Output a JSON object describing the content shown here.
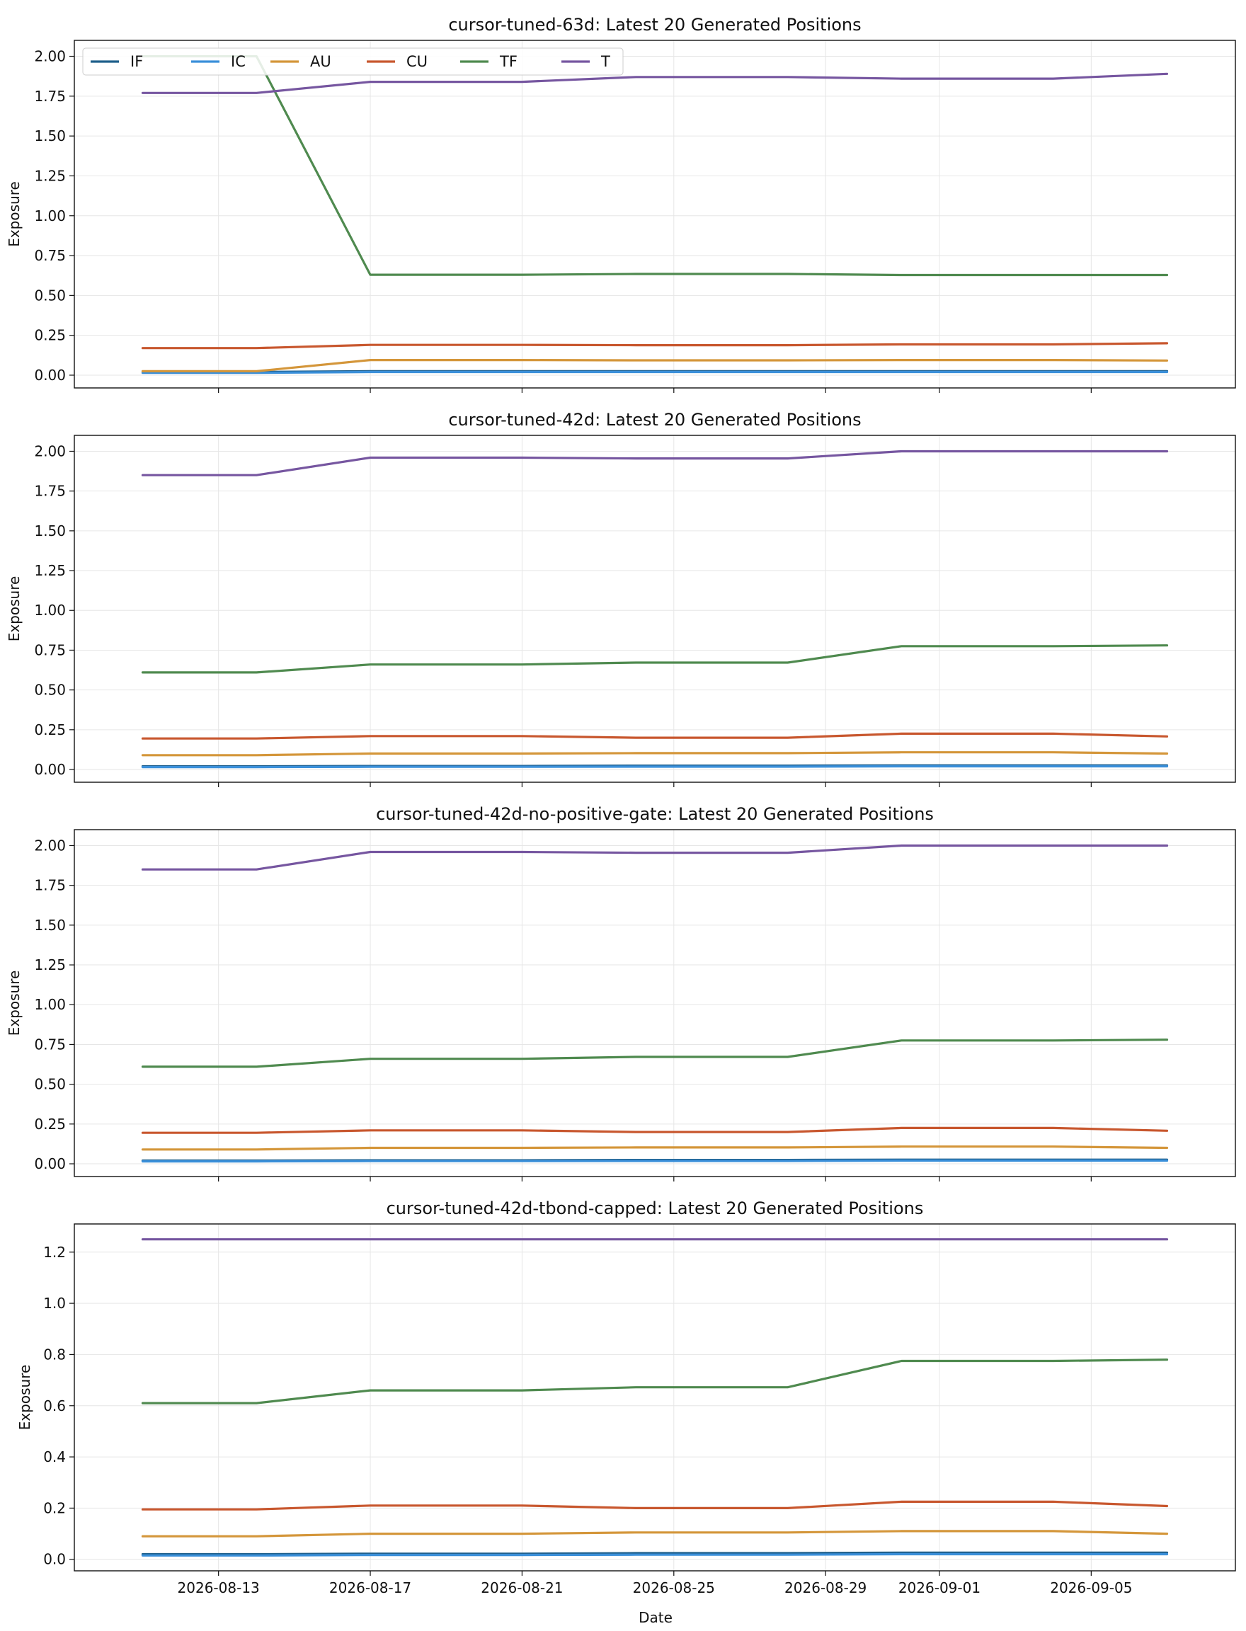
{
  "chart_data": {
    "type": "line",
    "shared_xlabel": "Date",
    "x_ticks": [
      "2026-08-13",
      "2026-08-17",
      "2026-08-21",
      "2026-08-25",
      "2026-08-29",
      "2026-09-01",
      "2026-09-05"
    ],
    "x": [
      "2026-08-11",
      "2026-08-14",
      "2026-08-17",
      "2026-08-21",
      "2026-08-24",
      "2026-08-28",
      "2026-08-31",
      "2026-09-04",
      "2026-09-07"
    ],
    "legend": {
      "placement": "upper-left",
      "columns": 6,
      "in_panel": 0
    },
    "colors": {
      "IF": "#1f5f8b",
      "IC": "#3a8fd9",
      "AU": "#d4963a",
      "CU": "#c8572e",
      "TF": "#4f8a4f",
      "T": "#7656a0"
    },
    "panels": [
      {
        "title": "cursor-tuned-63d: Latest 20 Generated Positions",
        "ylabel": "Exposure",
        "ylim": [
          -0.08,
          2.1
        ],
        "yticks": [
          "0.00",
          "0.25",
          "0.50",
          "0.75",
          "1.00",
          "1.25",
          "1.50",
          "1.75",
          "2.00"
        ],
        "series": [
          {
            "name": "IF",
            "values": [
              0.02,
              0.02,
              0.025,
              0.025,
              0.025,
              0.025,
              0.025,
              0.025,
              0.025
            ]
          },
          {
            "name": "IC",
            "values": [
              0.015,
              0.015,
              0.02,
              0.02,
              0.02,
              0.02,
              0.02,
              0.02,
              0.02
            ]
          },
          {
            "name": "AU",
            "values": [
              0.025,
              0.025,
              0.095,
              0.095,
              0.093,
              0.093,
              0.095,
              0.095,
              0.092
            ]
          },
          {
            "name": "CU",
            "values": [
              0.17,
              0.17,
              0.19,
              0.19,
              0.188,
              0.188,
              0.193,
              0.193,
              0.2
            ]
          },
          {
            "name": "TF",
            "values": [
              2.0,
              2.0,
              0.63,
              0.63,
              0.635,
              0.635,
              0.628,
              0.628,
              0.628
            ]
          },
          {
            "name": "T",
            "values": [
              1.77,
              1.77,
              1.84,
              1.84,
              1.87,
              1.87,
              1.86,
              1.86,
              1.89
            ]
          }
        ]
      },
      {
        "title": "cursor-tuned-42d: Latest 20 Generated Positions",
        "ylabel": "Exposure",
        "ylim": [
          -0.08,
          2.1
        ],
        "yticks": [
          "0.00",
          "0.25",
          "0.50",
          "0.75",
          "1.00",
          "1.25",
          "1.50",
          "1.75",
          "2.00"
        ],
        "series": [
          {
            "name": "IF",
            "values": [
              0.02,
              0.02,
              0.022,
              0.022,
              0.024,
              0.024,
              0.026,
              0.026,
              0.026
            ]
          },
          {
            "name": "IC",
            "values": [
              0.015,
              0.015,
              0.017,
              0.017,
              0.018,
              0.018,
              0.02,
              0.02,
              0.02
            ]
          },
          {
            "name": "AU",
            "values": [
              0.09,
              0.09,
              0.1,
              0.1,
              0.103,
              0.103,
              0.108,
              0.108,
              0.1
            ]
          },
          {
            "name": "CU",
            "values": [
              0.195,
              0.195,
              0.21,
              0.21,
              0.2,
              0.2,
              0.225,
              0.225,
              0.208
            ]
          },
          {
            "name": "TF",
            "values": [
              0.61,
              0.61,
              0.66,
              0.66,
              0.672,
              0.672,
              0.775,
              0.775,
              0.78
            ]
          },
          {
            "name": "T",
            "values": [
              1.85,
              1.85,
              1.96,
              1.96,
              1.955,
              1.955,
              2.0,
              2.0,
              2.0
            ]
          }
        ]
      },
      {
        "title": "cursor-tuned-42d-no-positive-gate: Latest 20 Generated Positions",
        "ylabel": "Exposure",
        "ylim": [
          -0.08,
          2.1
        ],
        "yticks": [
          "0.00",
          "0.25",
          "0.50",
          "0.75",
          "1.00",
          "1.25",
          "1.50",
          "1.75",
          "2.00"
        ],
        "series": [
          {
            "name": "IF",
            "values": [
              0.02,
              0.02,
              0.022,
              0.022,
              0.024,
              0.024,
              0.026,
              0.026,
              0.026
            ]
          },
          {
            "name": "IC",
            "values": [
              0.015,
              0.015,
              0.017,
              0.017,
              0.018,
              0.018,
              0.02,
              0.02,
              0.02
            ]
          },
          {
            "name": "AU",
            "values": [
              0.09,
              0.09,
              0.1,
              0.1,
              0.103,
              0.103,
              0.108,
              0.108,
              0.1
            ]
          },
          {
            "name": "CU",
            "values": [
              0.195,
              0.195,
              0.21,
              0.21,
              0.2,
              0.2,
              0.225,
              0.225,
              0.208
            ]
          },
          {
            "name": "TF",
            "values": [
              0.61,
              0.61,
              0.66,
              0.66,
              0.672,
              0.672,
              0.775,
              0.775,
              0.78
            ]
          },
          {
            "name": "T",
            "values": [
              1.85,
              1.85,
              1.96,
              1.96,
              1.955,
              1.955,
              2.0,
              2.0,
              2.0
            ]
          }
        ]
      },
      {
        "title": "cursor-tuned-42d-tbond-capped: Latest 20 Generated Positions",
        "ylabel": "Exposure",
        "ylim": [
          -0.045,
          1.31
        ],
        "yticks": [
          "0.0",
          "0.2",
          "0.4",
          "0.6",
          "0.8",
          "1.0",
          "1.2"
        ],
        "series": [
          {
            "name": "IF",
            "values": [
              0.02,
              0.02,
              0.022,
              0.022,
              0.024,
              0.024,
              0.026,
              0.026,
              0.026
            ]
          },
          {
            "name": "IC",
            "values": [
              0.015,
              0.015,
              0.017,
              0.017,
              0.018,
              0.018,
              0.02,
              0.02,
              0.02
            ]
          },
          {
            "name": "AU",
            "values": [
              0.09,
              0.09,
              0.1,
              0.1,
              0.105,
              0.105,
              0.11,
              0.11,
              0.1
            ]
          },
          {
            "name": "CU",
            "values": [
              0.195,
              0.195,
              0.21,
              0.21,
              0.2,
              0.2,
              0.225,
              0.225,
              0.208
            ]
          },
          {
            "name": "TF",
            "values": [
              0.61,
              0.61,
              0.66,
              0.66,
              0.672,
              0.672,
              0.775,
              0.775,
              0.78
            ]
          },
          {
            "name": "T",
            "values": [
              1.25,
              1.25,
              1.25,
              1.25,
              1.25,
              1.25,
              1.25,
              1.25,
              1.25
            ]
          }
        ]
      }
    ]
  }
}
